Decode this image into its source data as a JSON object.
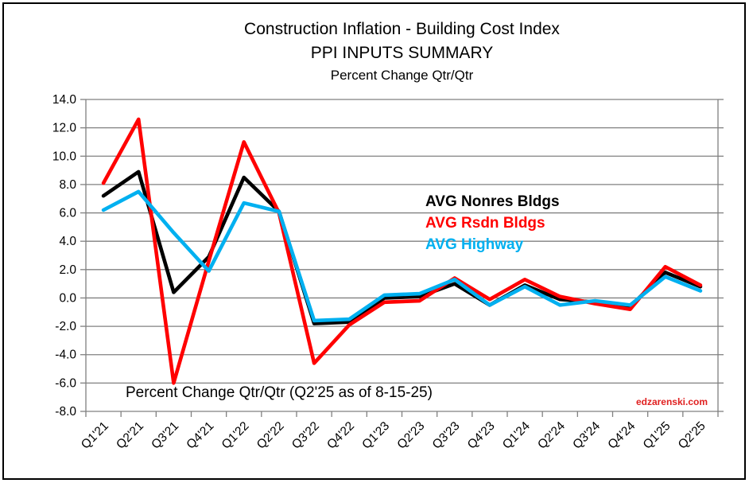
{
  "titles": {
    "line1": "Construction Inflation - Building Cost Index",
    "line2": "PPI INPUTS SUMMARY",
    "line3": "Percent Change Qtr/Qtr"
  },
  "annotation": "Percent Change Qtr/Qtr (Q2'25 as of 8-15-25)",
  "watermark": {
    "text": "edzarenski.com",
    "color": "#e02020"
  },
  "colors": {
    "grid": "#808080",
    "axis_text": "#000000"
  },
  "chart_data": {
    "type": "line",
    "title": "Construction Inflation - Building Cost Index PPI INPUTS SUMMARY",
    "subtitle": "Percent Change Qtr/Qtr",
    "categories": [
      "Q1'21",
      "Q2'21",
      "Q3'21",
      "Q4'21",
      "Q1'22",
      "Q2'22",
      "Q3'22",
      "Q4'22",
      "Q1'23",
      "Q2'23",
      "Q3'23",
      "Q4'23",
      "Q1'24",
      "Q2'24",
      "Q3'24",
      "Q4'24",
      "Q1'25",
      "Q2'25"
    ],
    "series": [
      {
        "name": "AVG Nonres Bldgs",
        "color": "#000000",
        "values": [
          7.2,
          8.9,
          0.4,
          2.9,
          8.5,
          6.1,
          -1.8,
          -1.7,
          0.0,
          0.1,
          1.0,
          -0.5,
          0.9,
          -0.1,
          -0.3,
          -0.6,
          1.8,
          0.8
        ]
      },
      {
        "name": "AVG Rsdn Bldgs",
        "color": "#ff0000",
        "values": [
          8.1,
          12.6,
          -6.0,
          2.6,
          11.0,
          6.0,
          -4.6,
          -1.9,
          -0.3,
          -0.2,
          1.4,
          -0.1,
          1.3,
          0.1,
          -0.4,
          -0.8,
          2.2,
          0.9
        ]
      },
      {
        "name": "AVG Highway",
        "color": "#00b0f0",
        "values": [
          6.2,
          7.5,
          4.6,
          1.9,
          6.7,
          6.1,
          -1.6,
          -1.5,
          0.2,
          0.3,
          1.3,
          -0.5,
          0.8,
          -0.5,
          -0.2,
          -0.5,
          1.5,
          0.5
        ]
      }
    ],
    "ylim": [
      -8.0,
      14.0
    ],
    "ytick_step": 2.0,
    "ytick_format_decimals": 1,
    "grid": "horizontal-only",
    "legend_position": "inside-right",
    "x_label_rotation_deg": -45
  }
}
